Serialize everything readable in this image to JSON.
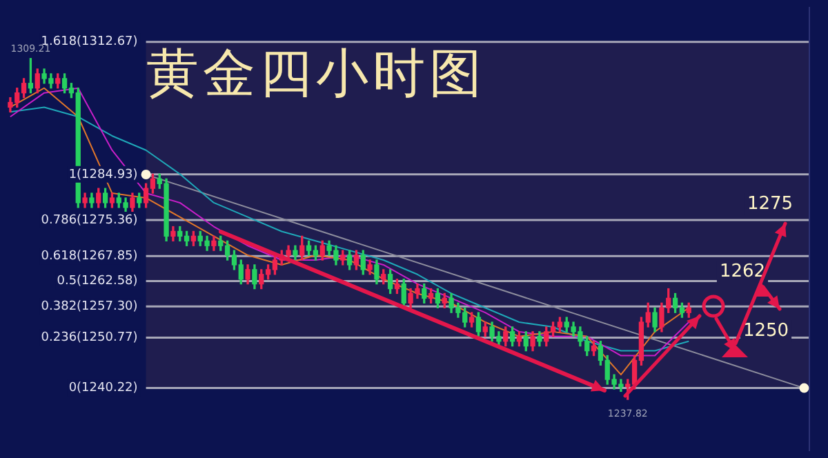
{
  "chart_data": {
    "type": "candlestick",
    "title": "黄金四小时图",
    "categories": [
      null,
      null,
      null,
      null,
      null,
      null,
      null,
      null,
      null,
      null,
      null,
      null,
      null,
      null,
      null,
      null,
      null,
      null,
      null,
      null,
      null,
      null,
      null,
      null,
      null,
      null,
      null,
      null,
      null,
      null,
      null,
      null,
      null,
      null,
      null,
      null,
      null,
      null,
      null,
      null,
      null,
      null,
      null,
      null,
      null,
      null,
      null,
      null,
      null,
      null,
      null,
      null,
      null,
      null,
      null,
      null,
      null,
      null,
      null,
      null,
      null,
      null,
      null,
      null,
      null,
      null,
      null,
      null,
      null,
      null,
      null,
      null,
      null,
      null,
      null,
      null,
      null,
      null,
      null,
      null,
      null,
      null,
      null,
      null,
      null,
      null,
      null,
      null,
      null,
      null,
      null,
      null,
      null,
      null,
      null,
      null,
      null,
      null,
      null,
      null,
      null,
      null,
      null,
      null,
      null,
      null,
      null,
      null,
      null,
      null,
      null,
      null,
      null,
      null,
      null,
      null,
      null,
      null,
      null,
      null
    ],
    "ohlc": [
      [
        1299,
        1301,
        1298,
        1300
      ],
      [
        1300,
        1303,
        1299,
        1302
      ],
      [
        1302,
        1305,
        1301,
        1304
      ],
      [
        1304,
        1309.21,
        1302,
        1303
      ],
      [
        1303,
        1307,
        1302,
        1306
      ],
      [
        1306,
        1307,
        1304,
        1305
      ],
      [
        1305,
        1306,
        1303,
        1304
      ],
      [
        1304,
        1306,
        1303,
        1305
      ],
      [
        1305,
        1306,
        1302,
        1303
      ],
      [
        1303,
        1304,
        1301,
        1302
      ],
      [
        1302,
        1303,
        1278,
        1279
      ],
      [
        1279,
        1281,
        1278,
        1280
      ],
      [
        1280,
        1281,
        1278,
        1279
      ],
      [
        1279,
        1282,
        1278,
        1281
      ],
      [
        1281,
        1282,
        1278,
        1279
      ],
      [
        1279,
        1281,
        1278,
        1280
      ],
      [
        1280,
        1281,
        1278,
        1279
      ],
      [
        1279,
        1280,
        1277,
        1278
      ],
      [
        1278,
        1281,
        1277,
        1280
      ],
      [
        1280,
        1281,
        1278,
        1279
      ],
      [
        1279,
        1283,
        1278,
        1282
      ],
      [
        1282,
        1285,
        1281,
        1284
      ],
      [
        1284,
        1285,
        1282,
        1283
      ],
      [
        1283,
        1284,
        1271,
        1272
      ],
      [
        1272,
        1274,
        1271,
        1273
      ],
      [
        1273,
        1274,
        1271,
        1272
      ],
      [
        1272,
        1273,
        1270,
        1271
      ],
      [
        1271,
        1273,
        1270,
        1272
      ],
      [
        1272,
        1273,
        1270,
        1271
      ],
      [
        1271,
        1272,
        1269,
        1270
      ],
      [
        1270,
        1272,
        1269,
        1271
      ],
      [
        1271,
        1272,
        1269,
        1270
      ],
      [
        1270,
        1271,
        1267,
        1268
      ],
      [
        1268,
        1269,
        1265,
        1266
      ],
      [
        1266,
        1267,
        1262,
        1263
      ],
      [
        1263,
        1266,
        1262,
        1265
      ],
      [
        1265,
        1266,
        1261,
        1262
      ],
      [
        1262,
        1265,
        1261,
        1264
      ],
      [
        1264,
        1266,
        1263,
        1265
      ],
      [
        1265,
        1268,
        1264,
        1267
      ],
      [
        1267,
        1269,
        1266,
        1268
      ],
      [
        1268,
        1270,
        1267,
        1269
      ],
      [
        1269,
        1270,
        1267,
        1268
      ],
      [
        1268,
        1272,
        1267,
        1270
      ],
      [
        1270,
        1271,
        1268,
        1269
      ],
      [
        1269,
        1270,
        1267,
        1268
      ],
      [
        1268,
        1271,
        1267,
        1270
      ],
      [
        1270,
        1271,
        1268,
        1269
      ],
      [
        1269,
        1270,
        1266,
        1267
      ],
      [
        1267,
        1269,
        1266,
        1268
      ],
      [
        1268,
        1269,
        1265,
        1266
      ],
      [
        1266,
        1269,
        1265,
        1268
      ],
      [
        1268,
        1269,
        1264,
        1265
      ],
      [
        1265,
        1267,
        1264,
        1266
      ],
      [
        1266,
        1267,
        1262,
        1263
      ],
      [
        1263,
        1265,
        1262,
        1264
      ],
      [
        1264,
        1265,
        1260,
        1261
      ],
      [
        1261,
        1263,
        1260,
        1262
      ],
      [
        1262,
        1263,
        1257,
        1258
      ],
      [
        1258,
        1261,
        1257,
        1260
      ],
      [
        1260,
        1262,
        1259,
        1261
      ],
      [
        1261,
        1262,
        1258,
        1259
      ],
      [
        1259,
        1261,
        1258,
        1260
      ],
      [
        1260,
        1261,
        1257,
        1258
      ],
      [
        1258,
        1260,
        1257,
        1259
      ],
      [
        1259,
        1260,
        1256,
        1257
      ],
      [
        1257,
        1258,
        1255,
        1256
      ],
      [
        1256,
        1257,
        1253,
        1254
      ],
      [
        1254,
        1256,
        1253,
        1255
      ],
      [
        1255,
        1256,
        1251,
        1252
      ],
      [
        1252,
        1254,
        1251,
        1253
      ],
      [
        1253,
        1254,
        1250,
        1251
      ],
      [
        1251,
        1252,
        1249,
        1250
      ],
      [
        1250,
        1253,
        1249,
        1252
      ],
      [
        1252,
        1253,
        1249,
        1250
      ],
      [
        1250,
        1252,
        1249,
        1251
      ],
      [
        1251,
        1252,
        1248,
        1249
      ],
      [
        1249,
        1252,
        1248,
        1251
      ],
      [
        1251,
        1252,
        1249,
        1250
      ],
      [
        1250,
        1253,
        1249,
        1252
      ],
      [
        1252,
        1254,
        1251,
        1253
      ],
      [
        1253,
        1255,
        1252,
        1254
      ],
      [
        1254,
        1255,
        1252,
        1253
      ],
      [
        1253,
        1254,
        1251,
        1252
      ],
      [
        1252,
        1253,
        1249,
        1250
      ],
      [
        1250,
        1251,
        1247,
        1248
      ],
      [
        1248,
        1250,
        1247,
        1249
      ],
      [
        1249,
        1250,
        1245,
        1246
      ],
      [
        1246,
        1247,
        1241,
        1242
      ],
      [
        1242,
        1243,
        1240,
        1241
      ],
      [
        1241,
        1242,
        1239.5,
        1240.5
      ],
      [
        1240.5,
        1242,
        1237.82,
        1241
      ],
      [
        1241,
        1247,
        1240,
        1246
      ],
      [
        1246,
        1255,
        1245,
        1254
      ],
      [
        1254,
        1258,
        1253,
        1256
      ],
      [
        1256,
        1257,
        1252,
        1253
      ],
      [
        1253,
        1258,
        1252,
        1257
      ],
      [
        1257,
        1261,
        1256,
        1259
      ],
      [
        1259,
        1260,
        1256,
        1257
      ],
      [
        1257,
        1258,
        1255,
        1256
      ],
      [
        1256,
        1258,
        1255,
        1257
      ],
      null,
      null,
      null,
      null,
      null,
      null,
      null,
      null,
      null,
      null,
      null,
      null,
      null,
      null,
      null,
      null,
      null,
      null,
      null
    ],
    "series": [
      {
        "type": "line",
        "color": "#e0762a",
        "values": [
          1299,
          null,
          null,
          null,
          null,
          1303,
          null,
          null,
          null,
          null,
          1297,
          null,
          null,
          null,
          null,
          1281,
          null,
          null,
          null,
          null,
          1280,
          null,
          null,
          null,
          null,
          1276,
          null,
          null,
          null,
          null,
          1272,
          null,
          null,
          null,
          null,
          1268,
          null,
          null,
          null,
          null,
          1266,
          null,
          null,
          null,
          null,
          1268,
          null,
          null,
          null,
          null,
          1267,
          null,
          null,
          null,
          null,
          1263,
          null,
          null,
          null,
          null,
          1260,
          null,
          null,
          null,
          null,
          1258,
          null,
          null,
          null,
          null,
          1254,
          null,
          null,
          null,
          null,
          1251,
          null,
          null,
          null,
          null,
          1252,
          null,
          null,
          null,
          null,
          1251,
          null,
          null,
          null,
          null,
          1243,
          null,
          null,
          null,
          null,
          1252,
          null,
          null,
          null,
          null,
          1257,
          null,
          null,
          null,
          null,
          null,
          null,
          null,
          null,
          null,
          null,
          null,
          null,
          null,
          null,
          null,
          null,
          null,
          null,
          null
        ]
      },
      {
        "type": "line",
        "color": "#c81fc8",
        "values": [
          1297,
          null,
          null,
          null,
          null,
          1302,
          null,
          null,
          null,
          null,
          1303,
          null,
          null,
          null,
          null,
          1290,
          null,
          null,
          null,
          null,
          1281,
          null,
          null,
          null,
          null,
          1279,
          null,
          null,
          null,
          null,
          1274,
          null,
          null,
          null,
          null,
          1270,
          null,
          null,
          null,
          null,
          1267,
          null,
          null,
          null,
          null,
          1267,
          null,
          null,
          null,
          null,
          1268,
          null,
          null,
          null,
          null,
          1266,
          null,
          null,
          null,
          null,
          1262,
          null,
          null,
          null,
          null,
          1259,
          null,
          null,
          null,
          null,
          1256,
          null,
          null,
          null,
          null,
          1252,
          null,
          null,
          null,
          null,
          1251,
          null,
          null,
          null,
          null,
          1251,
          null,
          null,
          null,
          null,
          1247,
          null,
          null,
          null,
          null,
          1247,
          null,
          null,
          null,
          null,
          1254,
          null,
          null,
          null,
          null,
          null,
          null,
          null,
          null,
          null,
          null,
          null,
          null,
          null,
          null,
          null,
          null,
          null,
          null,
          null
        ]
      },
      {
        "type": "line",
        "color": "#1fa8b8",
        "values": [
          1298,
          null,
          null,
          null,
          null,
          1299,
          null,
          null,
          null,
          null,
          1297,
          null,
          null,
          null,
          null,
          1293,
          null,
          null,
          null,
          null,
          1290,
          null,
          null,
          null,
          null,
          1285,
          null,
          null,
          null,
          null,
          1279,
          null,
          null,
          null,
          null,
          1276,
          null,
          null,
          null,
          null,
          1273,
          null,
          null,
          null,
          null,
          1271,
          null,
          null,
          null,
          null,
          1269,
          null,
          null,
          null,
          null,
          1267,
          null,
          null,
          null,
          null,
          1264,
          null,
          null,
          null,
          null,
          1260,
          null,
          null,
          null,
          null,
          1257,
          null,
          null,
          null,
          null,
          1254,
          null,
          null,
          null,
          null,
          1253,
          null,
          null,
          null,
          null,
          1250,
          null,
          null,
          null,
          null,
          1248,
          null,
          null,
          null,
          null,
          1248,
          null,
          null,
          null,
          null,
          1250,
          null,
          null,
          null,
          null,
          null,
          null,
          null,
          null,
          null,
          null,
          null,
          null,
          null,
          null,
          null,
          null,
          null,
          null,
          null
        ]
      },
      {
        "type": "line",
        "color": "#8c8c9c",
        "marker": "circle",
        "values": [
          null,
          null,
          null,
          null,
          null,
          null,
          null,
          null,
          null,
          null,
          null,
          null,
          null,
          null,
          null,
          null,
          null,
          null,
          null,
          null,
          1284.9,
          null,
          null,
          null,
          null,
          null,
          null,
          null,
          null,
          null,
          null,
          null,
          null,
          null,
          null,
          null,
          null,
          null,
          null,
          null,
          null,
          null,
          null,
          null,
          null,
          null,
          null,
          null,
          null,
          null,
          null,
          null,
          null,
          null,
          null,
          null,
          null,
          null,
          null,
          null,
          null,
          null,
          null,
          null,
          null,
          null,
          null,
          null,
          null,
          null,
          null,
          null,
          null,
          null,
          null,
          null,
          null,
          null,
          null,
          null,
          null,
          null,
          null,
          null,
          null,
          null,
          null,
          null,
          null,
          null,
          null,
          null,
          null,
          null,
          null,
          null,
          null,
          null,
          null,
          null,
          null,
          null,
          null,
          null,
          null,
          null,
          null,
          null,
          null,
          null,
          null,
          null,
          null,
          null,
          null,
          null,
          null,
          1240.2,
          null,
          null
        ]
      }
    ],
    "ref_lines": [
      {
        "axis": "y",
        "value": 1240.22,
        "label": "0(1240.22)"
      },
      {
        "axis": "y",
        "value": 1250.77,
        "label": "0.236(1250.77)"
      },
      {
        "axis": "y",
        "value": 1257.3,
        "label": "0.382(1257.30)"
      },
      {
        "axis": "y",
        "value": 1262.58,
        "label": "0.5(1262.58)"
      },
      {
        "axis": "y",
        "value": 1267.85,
        "label": "0.618(1267.85)"
      },
      {
        "axis": "y",
        "value": 1275.36,
        "label": "0.786(1275.36)"
      },
      {
        "axis": "y",
        "value": 1284.93,
        "label": "1(1284.93)"
      },
      {
        "axis": "y",
        "value": 1312.67,
        "label": "1.618(1312.67)"
      }
    ],
    "ylim": [
      1227,
      1320
    ],
    "tick_labels": false,
    "annotations": [
      {
        "text": "1309.21",
        "y": 1309.21
      },
      {
        "text": "1237.82",
        "y": 1237.82
      },
      "1275",
      "1262",
      "1250"
    ]
  }
}
